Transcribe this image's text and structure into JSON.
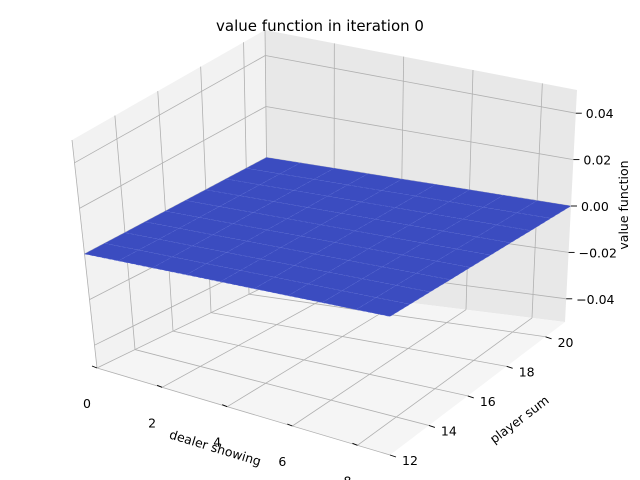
{
  "chart_data": {
    "type": "surface",
    "title": "value function in iteration 0",
    "xlabel": "dealer showing",
    "ylabel": "player sum",
    "zlabel": "value function",
    "x_ticks": [
      0,
      2,
      4,
      6,
      8
    ],
    "y_ticks": [
      12,
      14,
      16,
      18,
      20
    ],
    "z_ticks": [
      "−0.04",
      "−0.02",
      "0.00",
      "0.02",
      "0.04"
    ],
    "x_range": [
      0,
      9
    ],
    "y_range": [
      12,
      21
    ],
    "z_range": [
      -0.05,
      0.05
    ],
    "grid": true,
    "surface_value": 0.0,
    "surface_color": "#3b4cc0"
  }
}
